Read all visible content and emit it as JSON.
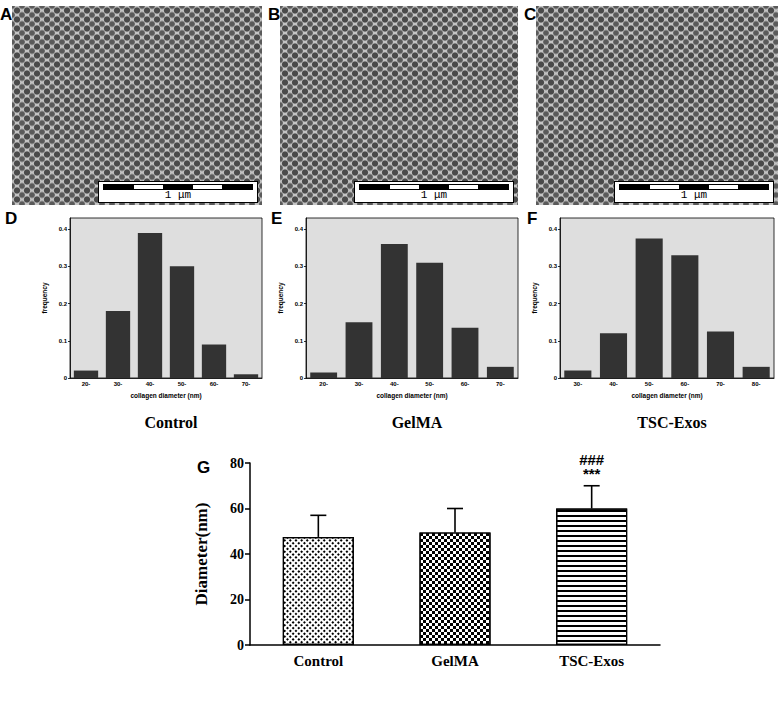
{
  "images": [
    {
      "panel": "A",
      "scale_bar": "1 μm"
    },
    {
      "panel": "B",
      "scale_bar": "1 μm"
    },
    {
      "panel": "C",
      "scale_bar": "1 μm"
    }
  ],
  "chart_data": [
    {
      "type": "bar",
      "panel": "D",
      "title": "Control",
      "x_label": "collagen diameter (nm)",
      "y_label": "frequency",
      "categories": [
        "20-",
        "30-",
        "40-",
        "50-",
        "60-",
        "70-"
      ],
      "values": [
        0.02,
        0.18,
        0.39,
        0.3,
        0.09,
        0.01
      ],
      "color": "#333333",
      "ylim": [
        0,
        0.43
      ],
      "yticks": [
        0,
        0.1,
        0.2,
        0.3,
        0.4
      ],
      "grid": false
    },
    {
      "type": "bar",
      "panel": "E",
      "title": "GelMA",
      "x_label": "collagen diameter (nm)",
      "y_label": "frequency",
      "categories": [
        "20-",
        "30-",
        "40-",
        "50-",
        "60-",
        "70-"
      ],
      "values": [
        0.015,
        0.15,
        0.36,
        0.31,
        0.135,
        0.03
      ],
      "color": "#333333",
      "ylim": [
        0,
        0.43
      ],
      "yticks": [
        0,
        0.1,
        0.2,
        0.3,
        0.4
      ],
      "grid": false
    },
    {
      "type": "bar",
      "panel": "F",
      "title": "TSC-Exos",
      "x_label": "collagen diameter (nm)",
      "y_label": "frequency",
      "categories": [
        "30-",
        "40-",
        "50-",
        "60-",
        "70-",
        "80-"
      ],
      "values": [
        0.02,
        0.12,
        0.375,
        0.33,
        0.125,
        0.03
      ],
      "color": "#333333",
      "ylim": [
        0,
        0.43
      ],
      "yticks": [
        0,
        0.1,
        0.2,
        0.3,
        0.4
      ],
      "grid": false
    },
    {
      "type": "bar",
      "panel": "G",
      "y_label": "Diameter(nm)",
      "categories": [
        "Control",
        "GelMA",
        "TSC-Exos"
      ],
      "values": [
        47.5,
        49.5,
        60
      ],
      "errors": [
        9.5,
        10.5,
        10
      ],
      "annotations": [
        {
          "category": "TSC-Exos",
          "text": "###"
        },
        {
          "category": "TSC-Exos",
          "text": "***"
        }
      ],
      "color": "#000000",
      "ylim": [
        0,
        80
      ],
      "yticks": [
        0,
        20,
        40,
        60,
        80
      ],
      "grid": false
    }
  ]
}
